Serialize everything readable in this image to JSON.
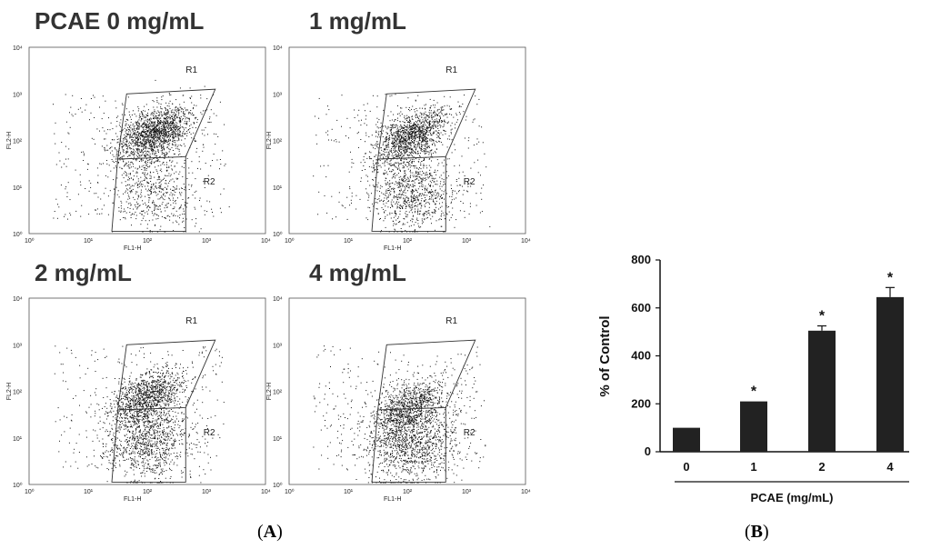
{
  "chart_data": [
    {
      "type": "scatter",
      "panel": "A",
      "title": "PCAE 0 mg/mL",
      "xlabel": "FL1-H",
      "ylabel": "FL2-H",
      "x_ticks": [
        "10⁰",
        "10¹",
        "10²",
        "10³",
        "10⁴"
      ],
      "y_ticks": [
        "10⁰",
        "10¹",
        "10²",
        "10³",
        "10⁴"
      ],
      "regions": [
        "R1",
        "R2"
      ],
      "cluster_fl1": 2.1,
      "cluster_fl2": 2.15,
      "r2_share": 0.25,
      "n_points": 2400
    },
    {
      "type": "scatter",
      "panel": "A",
      "title": "1 mg/mL",
      "xlabel": "FL1-H",
      "ylabel": "FL2-H",
      "x_ticks": [
        "10⁰",
        "10¹",
        "10²",
        "10³",
        "10⁴"
      ],
      "y_ticks": [
        "10⁰",
        "10¹",
        "10²",
        "10³",
        "10⁴"
      ],
      "regions": [
        "R1",
        "R2"
      ],
      "cluster_fl1": 2.05,
      "cluster_fl2": 2.1,
      "r2_share": 0.4,
      "n_points": 2400
    },
    {
      "type": "scatter",
      "panel": "A",
      "title": "2 mg/mL",
      "xlabel": "FL1-H",
      "ylabel": "FL2-H",
      "x_ticks": [
        "10⁰",
        "10¹",
        "10²",
        "10³",
        "10⁴"
      ],
      "y_ticks": [
        "10⁰",
        "10¹",
        "10²",
        "10³",
        "10⁴"
      ],
      "regions": [
        "R1",
        "R2"
      ],
      "cluster_fl1": 2.0,
      "cluster_fl2": 1.9,
      "r2_share": 0.5,
      "n_points": 2400
    },
    {
      "type": "scatter",
      "panel": "A",
      "title": "4 mg/mL",
      "xlabel": "FL1-H",
      "ylabel": "FL2-H",
      "x_ticks": [
        "10⁰",
        "10¹",
        "10²",
        "10³",
        "10⁴"
      ],
      "y_ticks": [
        "10⁰",
        "10¹",
        "10²",
        "10³",
        "10⁴"
      ],
      "regions": [
        "R1",
        "R2"
      ],
      "cluster_fl1": 2.05,
      "cluster_fl2": 1.7,
      "r2_share": 0.6,
      "n_points": 2400
    },
    {
      "type": "bar",
      "panel": "B",
      "title": "",
      "categories": [
        "0",
        "1",
        "2",
        "4"
      ],
      "values": [
        100,
        210,
        505,
        645
      ],
      "errors": [
        0,
        0,
        20,
        40
      ],
      "significant": [
        false,
        true,
        true,
        true
      ],
      "significance_marker": "*",
      "xlabel": "PCAE (mg/mL)",
      "ylabel": "% of Control",
      "ylim": [
        0,
        800
      ],
      "yticks": [
        0,
        200,
        400,
        600,
        800
      ]
    }
  ],
  "captions": {
    "panel_a": "A",
    "panel_b": "B"
  }
}
